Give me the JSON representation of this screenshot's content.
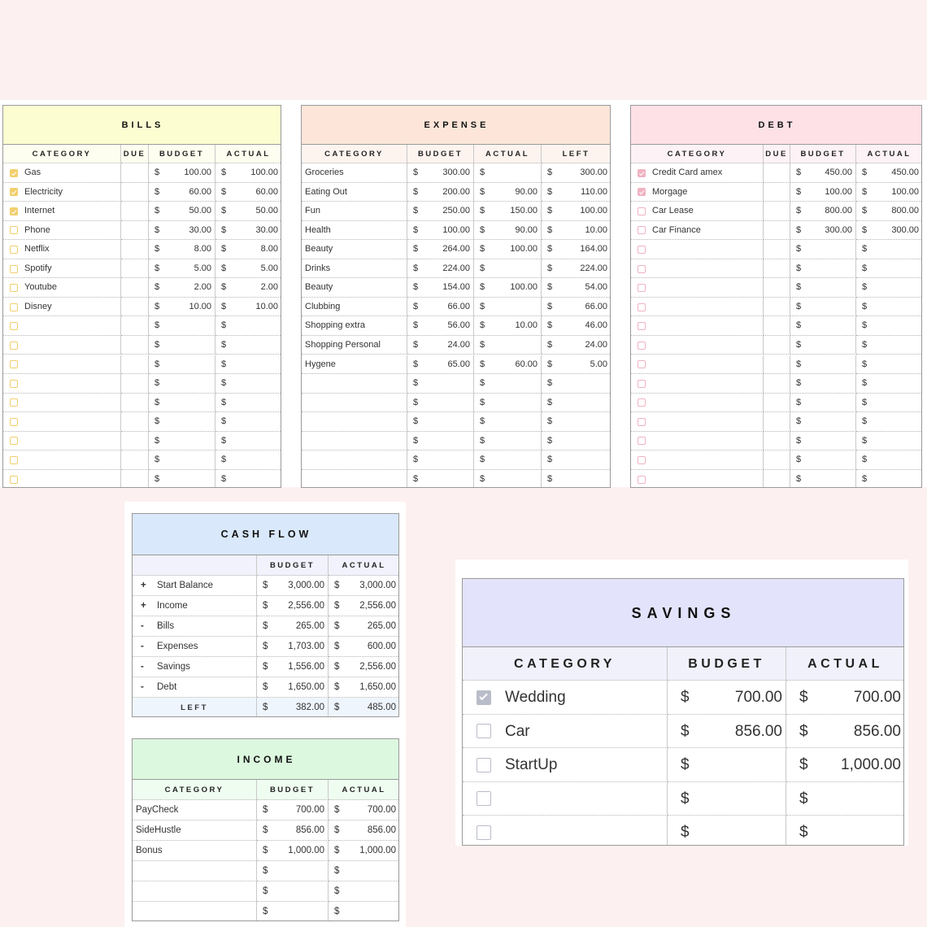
{
  "currency": "$",
  "bills": {
    "title": "BILLS",
    "columns": [
      "CATEGORY",
      "DUE",
      "BUDGET",
      "ACTUAL"
    ],
    "rows": [
      {
        "checked": true,
        "category": "Gas",
        "budget": "100.00",
        "actual": "100.00"
      },
      {
        "checked": true,
        "category": "Electricity",
        "budget": "60.00",
        "actual": "60.00"
      },
      {
        "checked": true,
        "category": "Internet",
        "budget": "50.00",
        "actual": "50.00"
      },
      {
        "checked": false,
        "category": "Phone",
        "budget": "30.00",
        "actual": "30.00"
      },
      {
        "checked": false,
        "category": "Netflix",
        "budget": "8.00",
        "actual": "8.00"
      },
      {
        "checked": false,
        "category": "Spotify",
        "budget": "5.00",
        "actual": "5.00"
      },
      {
        "checked": false,
        "category": "Youtube",
        "budget": "2.00",
        "actual": "2.00"
      },
      {
        "checked": false,
        "category": "Disney",
        "budget": "10.00",
        "actual": "10.00"
      },
      {
        "checked": false
      },
      {
        "checked": false
      },
      {
        "checked": false
      },
      {
        "checked": false
      },
      {
        "checked": false
      },
      {
        "checked": false
      },
      {
        "checked": false
      },
      {
        "checked": false
      },
      {
        "checked": false
      }
    ]
  },
  "expense": {
    "title": "EXPENSE",
    "columns": [
      "CATEGORY",
      "BUDGET",
      "ACTUAL",
      "LEFT"
    ],
    "rows": [
      {
        "category": "Groceries",
        "budget": "300.00",
        "left": "300.00"
      },
      {
        "category": "Eating Out",
        "budget": "200.00",
        "actual": "90.00",
        "left": "110.00"
      },
      {
        "category": "Fun",
        "budget": "250.00",
        "actual": "150.00",
        "left": "100.00"
      },
      {
        "category": "Health",
        "budget": "100.00",
        "actual": "90.00",
        "left": "10.00"
      },
      {
        "category": "Beauty",
        "budget": "264.00",
        "actual": "100.00",
        "left": "164.00"
      },
      {
        "category": "Drinks",
        "budget": "224.00",
        "left": "224.00"
      },
      {
        "category": "Beauty",
        "budget": "154.00",
        "actual": "100.00",
        "left": "54.00"
      },
      {
        "category": "Clubbing",
        "budget": "66.00",
        "left": "66.00"
      },
      {
        "category": "Shopping extra",
        "budget": "56.00",
        "actual": "10.00",
        "left": "46.00"
      },
      {
        "category": "Shopping Personal",
        "budget": "24.00",
        "left": "24.00"
      },
      {
        "category": "Hygene",
        "budget": "65.00",
        "actual": "60.00",
        "left": "5.00"
      },
      {},
      {},
      {},
      {},
      {},
      {}
    ]
  },
  "debt": {
    "title": "DEBT",
    "columns": [
      "CATEGORY",
      "DUE",
      "BUDGET",
      "ACTUAL"
    ],
    "rows": [
      {
        "checked": true,
        "category": "Credit Card amex",
        "budget": "450.00",
        "actual": "450.00"
      },
      {
        "checked": true,
        "category": "Morgage",
        "budget": "100.00",
        "actual": "100.00"
      },
      {
        "checked": false,
        "category": "Car Lease",
        "budget": "800.00",
        "actual": "800.00"
      },
      {
        "checked": false,
        "category": "Car Finance",
        "budget": "300.00",
        "actual": "300.00"
      },
      {
        "checked": false
      },
      {
        "checked": false
      },
      {
        "checked": false
      },
      {
        "checked": false
      },
      {
        "checked": false
      },
      {
        "checked": false
      },
      {
        "checked": false
      },
      {
        "checked": false
      },
      {
        "checked": false
      },
      {
        "checked": false
      },
      {
        "checked": false
      },
      {
        "checked": false
      },
      {
        "checked": false
      }
    ]
  },
  "cash_flow": {
    "title": "CASH FLOW",
    "columns": [
      null,
      "BUDGET",
      "ACTUAL"
    ],
    "rows": [
      {
        "sign": "+",
        "label": "Start Balance",
        "budget": "3,000.00",
        "actual": "3,000.00"
      },
      {
        "sign": "+",
        "label": "Income",
        "budget": "2,556.00",
        "actual": "2,556.00"
      },
      {
        "sign": "-",
        "label": "Bills",
        "budget": "265.00",
        "actual": "265.00"
      },
      {
        "sign": "-",
        "label": "Expenses",
        "budget": "1,703.00",
        "actual": "600.00"
      },
      {
        "sign": "-",
        "label": "Savings",
        "budget": "1,556.00",
        "actual": "2,556.00"
      },
      {
        "sign": "-",
        "label": "Debt",
        "budget": "1,650.00",
        "actual": "1,650.00"
      }
    ],
    "total": {
      "label": "LEFT",
      "budget": "382.00",
      "actual": "485.00"
    }
  },
  "income": {
    "title": "INCOME",
    "columns": [
      "CATEGORY",
      "BUDGET",
      "ACTUAL"
    ],
    "rows": [
      {
        "category": "PayCheck",
        "budget": "700.00",
        "actual": "700.00"
      },
      {
        "category": "SideHustle",
        "budget": "856.00",
        "actual": "856.00"
      },
      {
        "category": "Bonus",
        "budget": "1,000.00",
        "actual": "1,000.00"
      },
      {},
      {},
      {}
    ]
  },
  "savings": {
    "title": "SAVINGS",
    "columns": [
      "CATEGORY",
      "BUDGET",
      "ACTUAL"
    ],
    "rows": [
      {
        "checked": true,
        "category": "Wedding",
        "budget": "700.00",
        "actual": "700.00"
      },
      {
        "checked": false,
        "category": "Car",
        "budget": "856.00",
        "actual": "856.00"
      },
      {
        "checked": false,
        "category": "StartUp",
        "actual": "1,000.00"
      },
      {
        "checked": false
      },
      {
        "checked": false
      }
    ]
  }
}
